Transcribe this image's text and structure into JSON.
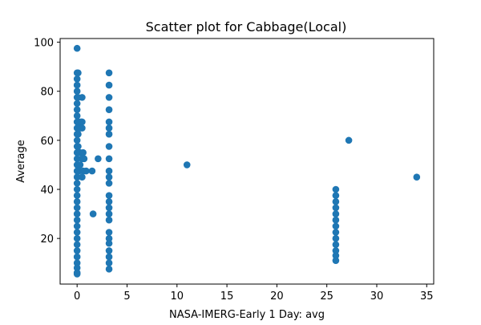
{
  "chart_data": {
    "type": "scatter",
    "title": "Scatter plot for Cabbage(Local)",
    "xlabel": "NASA-IMERG-Early 1 Day: avg",
    "ylabel": "Average",
    "xlim": [
      -1.7,
      35.7
    ],
    "ylim": [
      1.4,
      101.5
    ],
    "xticks": [
      0,
      5,
      10,
      15,
      20,
      25,
      30,
      35
    ],
    "yticks": [
      20,
      40,
      60,
      80,
      100
    ],
    "grid": false,
    "legend": "none",
    "marker_color": "#1f77b4",
    "points": [
      [
        0,
        97.5
      ],
      [
        0,
        87.5
      ],
      [
        0.1,
        87.5
      ],
      [
        0,
        85
      ],
      [
        0,
        82.5
      ],
      [
        0,
        80
      ],
      [
        0,
        77.5
      ],
      [
        0.1,
        77.5
      ],
      [
        0.5,
        77.5
      ],
      [
        0,
        75
      ],
      [
        0,
        72.5
      ],
      [
        0,
        70
      ],
      [
        0,
        67.5
      ],
      [
        0.1,
        67.5
      ],
      [
        0.2,
        67.5
      ],
      [
        0.4,
        67.5
      ],
      [
        0.5,
        67.5
      ],
      [
        0,
        65
      ],
      [
        0.3,
        65
      ],
      [
        0.5,
        65
      ],
      [
        0,
        62.5
      ],
      [
        0.1,
        62.5
      ],
      [
        0,
        60
      ],
      [
        0,
        57.5
      ],
      [
        0.1,
        57.5
      ],
      [
        0,
        55
      ],
      [
        0.3,
        55
      ],
      [
        0.6,
        55
      ],
      [
        0,
        52.5
      ],
      [
        0.5,
        52.5
      ],
      [
        0.7,
        52.5
      ],
      [
        2.1,
        52.5
      ],
      [
        0,
        50
      ],
      [
        0.3,
        50
      ],
      [
        0,
        47.5
      ],
      [
        0.2,
        47.5
      ],
      [
        0.6,
        47.5
      ],
      [
        0.9,
        47.5
      ],
      [
        1.5,
        47.5
      ],
      [
        0,
        45
      ],
      [
        0.5,
        45
      ],
      [
        0,
        42.5
      ],
      [
        0,
        40
      ],
      [
        0,
        37.5
      ],
      [
        0,
        35
      ],
      [
        0,
        32.5
      ],
      [
        0,
        30
      ],
      [
        1.6,
        30
      ],
      [
        0,
        27.5
      ],
      [
        0,
        25
      ],
      [
        0,
        22.5
      ],
      [
        0,
        20
      ],
      [
        0,
        17.5
      ],
      [
        0,
        15
      ],
      [
        0,
        12.5
      ],
      [
        0,
        10
      ],
      [
        0,
        8
      ],
      [
        0,
        6
      ],
      [
        0,
        5.5
      ],
      [
        3.2,
        87.5
      ],
      [
        3.2,
        82.5
      ],
      [
        3.2,
        77.5
      ],
      [
        3.2,
        72.5
      ],
      [
        3.2,
        67.5
      ],
      [
        3.2,
        65
      ],
      [
        3.2,
        62.5
      ],
      [
        3.2,
        57.5
      ],
      [
        3.2,
        52.5
      ],
      [
        3.2,
        47.5
      ],
      [
        3.2,
        45
      ],
      [
        3.2,
        42.5
      ],
      [
        3.2,
        37.5
      ],
      [
        3.2,
        35
      ],
      [
        3.2,
        32.5
      ],
      [
        3.2,
        30
      ],
      [
        3.2,
        27.5
      ],
      [
        3.2,
        22.5
      ],
      [
        3.2,
        20
      ],
      [
        3.2,
        18
      ],
      [
        3.2,
        15
      ],
      [
        3.2,
        12.5
      ],
      [
        3.2,
        10
      ],
      [
        3.2,
        7.5
      ],
      [
        11,
        50
      ],
      [
        25.9,
        40
      ],
      [
        25.9,
        37.5
      ],
      [
        25.9,
        35
      ],
      [
        25.9,
        32.5
      ],
      [
        25.9,
        30
      ],
      [
        25.9,
        27.5
      ],
      [
        25.9,
        25
      ],
      [
        25.9,
        22.5
      ],
      [
        25.9,
        20
      ],
      [
        25.9,
        17.5
      ],
      [
        25.9,
        15
      ],
      [
        25.9,
        13
      ],
      [
        25.9,
        11
      ],
      [
        27.2,
        60
      ],
      [
        34,
        45
      ]
    ]
  }
}
